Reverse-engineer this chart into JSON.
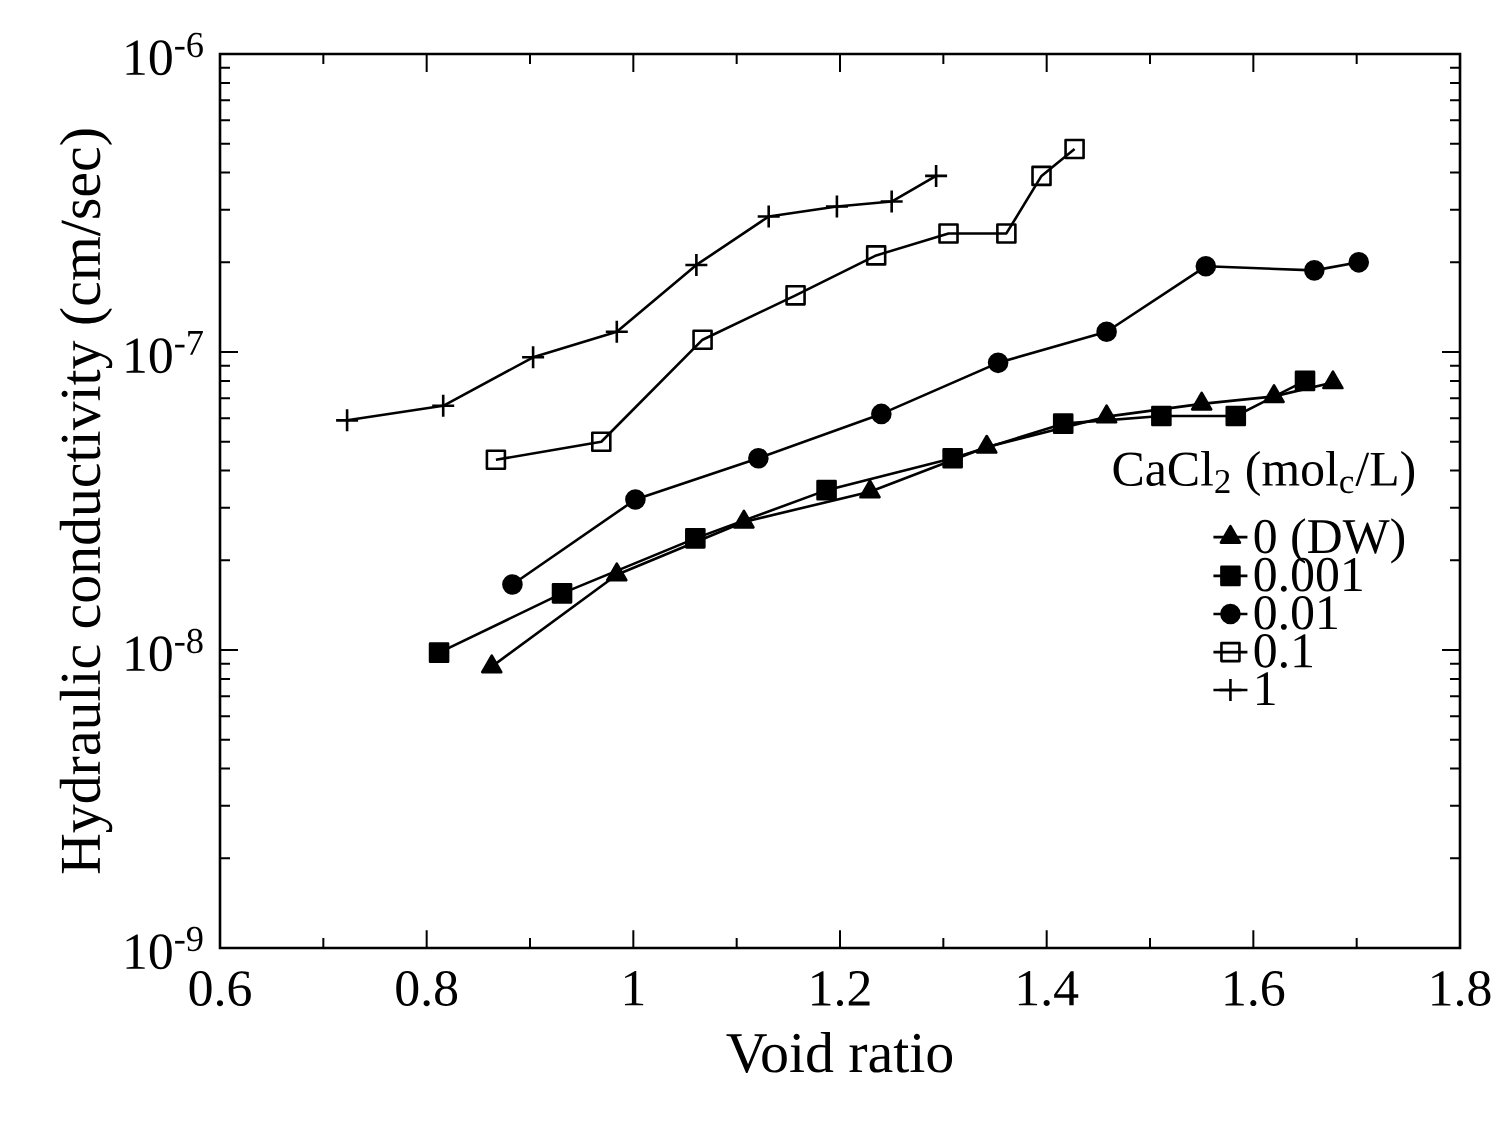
{
  "chart_data": {
    "type": "line",
    "xlabel": "Void ratio",
    "ylabel": "Hydraulic conductivity (cm/sec)",
    "legend_title": "CaCl$_{2}$ (mol$_{c}$/L)",
    "log": "y",
    "xlim": [
      0.6,
      1.8
    ],
    "ylim": [
      1e-09,
      1e-06
    ],
    "xticks": [
      0.6,
      0.8,
      1,
      1.2,
      1.4,
      1.6,
      1.8
    ],
    "yticks": [
      {
        "value": 1e-09,
        "label": "10$^{-9}$"
      },
      {
        "value": 1e-08,
        "label": "10$^{-8}$"
      },
      {
        "value": 1e-07,
        "label": "10$^{-7}$"
      },
      {
        "value": 1e-06,
        "label": "10$^{-6}$"
      }
    ],
    "grid": false,
    "legend": "bottom right",
    "line_style": "solid",
    "series": [
      {
        "name": "0 (DW)",
        "color": "#000000",
        "marker": "triangle",
        "x": [
          0.863,
          0.984,
          1.107,
          1.229,
          1.342,
          1.458,
          1.55,
          1.62,
          1.677
        ],
        "values": [
          8.8e-09,
          1.79e-08,
          2.69e-08,
          3.4e-08,
          4.8e-08,
          6.07e-08,
          6.7e-08,
          7.1e-08,
          7.9e-08
        ]
      },
      {
        "name": "0.001",
        "color": "#000000",
        "marker": "square",
        "x": [
          0.812,
          0.931,
          1.06,
          1.187,
          1.309,
          1.416,
          1.511,
          1.583,
          1.65
        ],
        "values": [
          9.8e-09,
          1.55e-08,
          2.37e-08,
          3.44e-08,
          4.4e-08,
          5.75e-08,
          6.1e-08,
          6.1e-08,
          8e-08
        ]
      },
      {
        "name": "0.01",
        "color": "#000000",
        "marker": "circle",
        "x": [
          0.883,
          1.002,
          1.121,
          1.24,
          1.353,
          1.458,
          1.554,
          1.659,
          1.702
        ],
        "values": [
          1.66e-08,
          3.2e-08,
          4.4e-08,
          6.2e-08,
          9.2e-08,
          1.17e-07,
          1.94e-07,
          1.88e-07,
          2e-07
        ]
      },
      {
        "name": "0.1",
        "color": "#000000",
        "marker": "square",
        "x": [
          0.867,
          0.969,
          1.067,
          1.157,
          1.235,
          1.305,
          1.361,
          1.395,
          1.427
        ],
        "values": [
          4.35e-08,
          5e-08,
          1.1e-07,
          1.55e-07,
          2.11e-07,
          2.5e-07,
          2.5e-07,
          3.9e-07,
          4.8e-07
        ]
      },
      {
        "name": "1",
        "color": "#000000",
        "marker": "cross",
        "x": [
          0.723,
          0.816,
          0.903,
          0.984,
          1.061,
          1.131,
          1.197,
          1.25,
          1.293
        ],
        "values": [
          5.9e-08,
          6.6e-08,
          9.6e-08,
          1.17e-07,
          1.96e-07,
          2.85e-07,
          3.08e-07,
          3.2e-07,
          3.9e-07
        ]
      }
    ]
  }
}
